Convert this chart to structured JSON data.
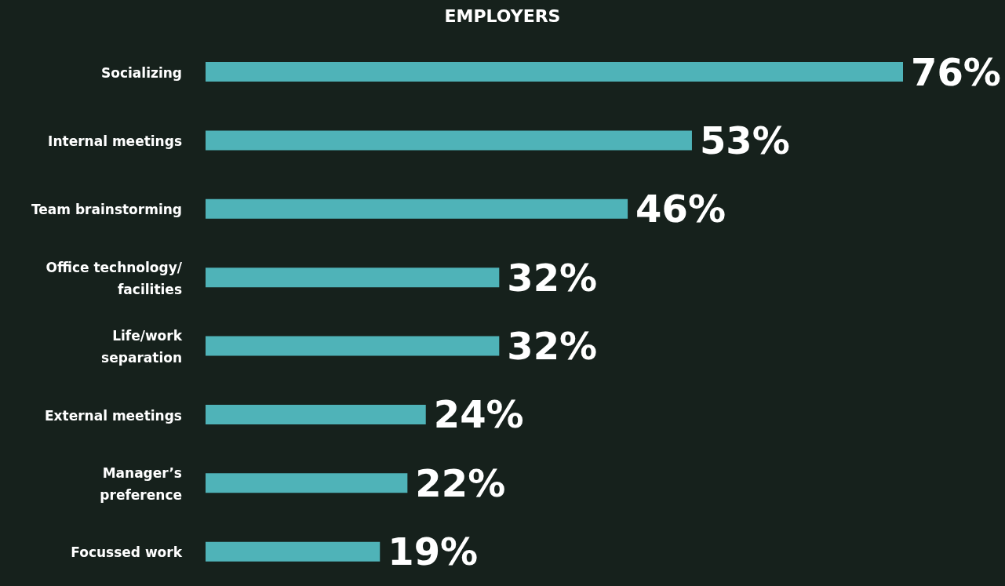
{
  "chart_data": {
    "type": "bar",
    "orientation": "horizontal",
    "title": "EMPLOYERS",
    "categories": [
      "Socializing",
      "Internal meetings",
      "Team brainstorming",
      "Office technology/ facilities",
      "Life/work separation",
      "External meetings",
      "Manager’s preference",
      "Focussed work"
    ],
    "values": [
      76,
      53,
      46,
      32,
      32,
      24,
      22,
      19
    ],
    "value_labels": [
      "76%",
      "53%",
      "46%",
      "32%",
      "32%",
      "24%",
      "22%",
      "19%"
    ],
    "color": "#4fb3b8",
    "grid": false,
    "legend": false,
    "tick_labels": "y"
  }
}
